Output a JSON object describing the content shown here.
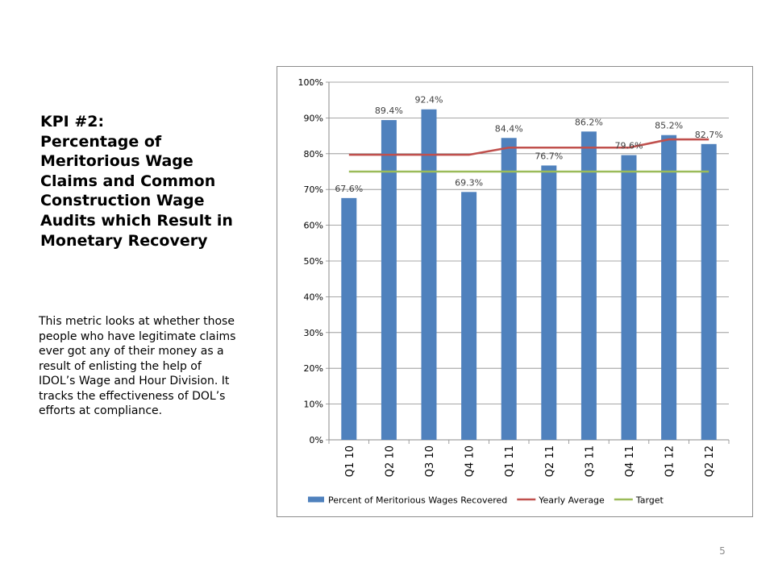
{
  "slide": {
    "title_line1": "KPI #2:",
    "title_line2": "Percentage of Meritorious Wage Claims and Common Construction Wage Audits which Result in Monetary Recovery",
    "description": "This metric looks at whether those people who have legitimate claims ever got any of their money as a result of enlisting the help of IDOL’s Wage and Hour Division.  It tracks the effectiveness of DOL’s efforts at compliance.",
    "page_number": "5"
  },
  "chart_data": {
    "type": "bar",
    "categories": [
      "Q1 10",
      "Q2 10",
      "Q3 10",
      "Q4 10",
      "Q1 11",
      "Q2 11",
      "Q3 11",
      "Q4 11",
      "Q1 12",
      "Q2 12"
    ],
    "series": [
      {
        "name": "Percent of Meritorious Wages Recovered",
        "type": "bar",
        "color": "#4F81BD",
        "values": [
          67.6,
          89.4,
          92.4,
          69.3,
          84.4,
          76.7,
          86.2,
          79.6,
          85.2,
          82.7
        ],
        "data_labels": [
          "67.6%",
          "89.4%",
          "92.4%",
          "69.3%",
          "84.4%",
          "76.7%",
          "86.2%",
          "79.6%",
          "85.2%",
          "82.7%"
        ]
      },
      {
        "name": "Yearly Average",
        "type": "line",
        "color": "#C0504D",
        "values": [
          79.7,
          79.7,
          79.7,
          79.7,
          81.7,
          81.7,
          81.7,
          81.7,
          84.0,
          84.0
        ]
      },
      {
        "name": "Target",
        "type": "line",
        "color": "#9BBB59",
        "values": [
          75,
          75,
          75,
          75,
          75,
          75,
          75,
          75,
          75,
          75
        ]
      }
    ],
    "y_ticks": [
      "0%",
      "10%",
      "20%",
      "30%",
      "40%",
      "50%",
      "60%",
      "70%",
      "80%",
      "90%",
      "100%"
    ],
    "ylim": [
      0,
      100
    ],
    "grid": true,
    "legend_position": "bottom"
  }
}
